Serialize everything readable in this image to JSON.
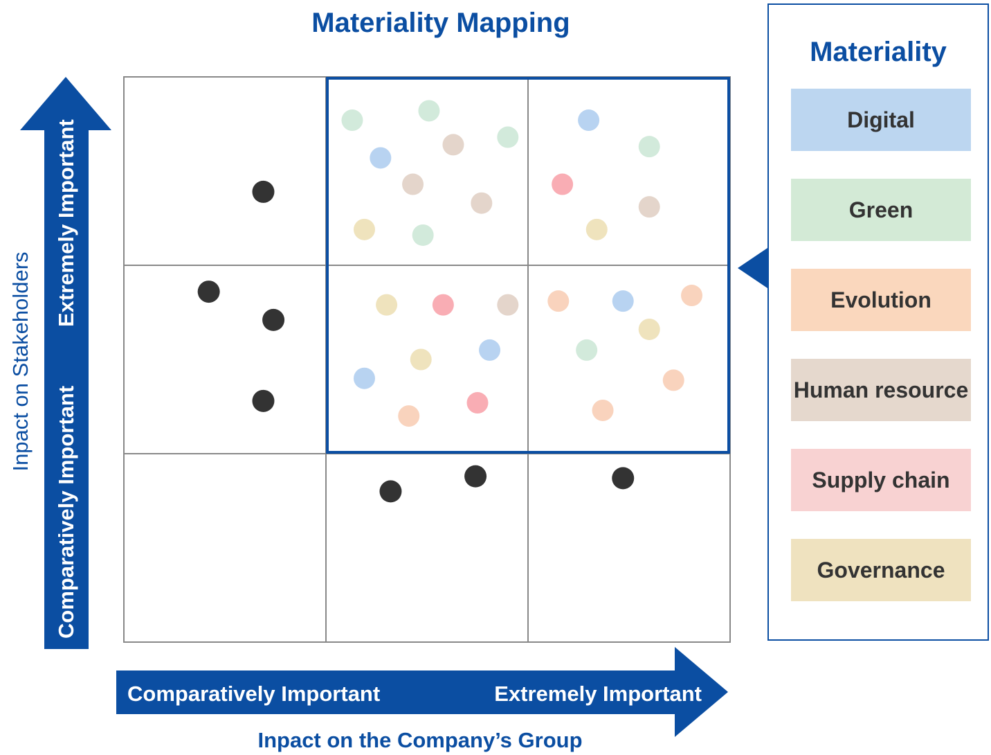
{
  "chart_data": {
    "type": "scatter",
    "title": "Materiality Mapping",
    "xlabel": "Inpact on the Company’s Group",
    "ylabel": "Inpact on Stakeholders",
    "x_axis_labels": {
      "low": "Comparatively Important",
      "high": "Extremely Important"
    },
    "y_axis_labels": {
      "low": "Comparatively Important",
      "high": "Extremely Important"
    },
    "xlim": [
      0,
      3
    ],
    "ylim": [
      0,
      3
    ],
    "grid": {
      "rows": 3,
      "cols": 3
    },
    "legend": {
      "title": "Materiality",
      "placement": "right",
      "entries": [
        {
          "key": "digital",
          "label": "Digital",
          "color": "#bcd6f0"
        },
        {
          "key": "green",
          "label": "Green",
          "color": "#d3ead6"
        },
        {
          "key": "evolution",
          "label": "Evolution",
          "color": "#fad7bd"
        },
        {
          "key": "human",
          "label": "Human resource",
          "color": "#e5d8cd"
        },
        {
          "key": "supply",
          "label": "Supply chain",
          "color": "#f8d2d2"
        },
        {
          "key": "governance",
          "label": "Governance",
          "color": "#efe2bf"
        }
      ]
    },
    "dot_colors": {
      "digital": "#b8d3f1",
      "green": "#d2eadb",
      "evolution": "#f9d3bd",
      "human": "#e4d5cb",
      "supply": "#f9adb4",
      "governance": "#efe3bd",
      "other": "#333333"
    },
    "points": [
      {
        "x": 1.13,
        "y": 2.77,
        "category": "green"
      },
      {
        "x": 1.51,
        "y": 2.82,
        "category": "green"
      },
      {
        "x": 1.9,
        "y": 2.68,
        "category": "green"
      },
      {
        "x": 1.27,
        "y": 2.57,
        "category": "digital"
      },
      {
        "x": 1.63,
        "y": 2.64,
        "category": "human"
      },
      {
        "x": 1.43,
        "y": 2.43,
        "category": "human"
      },
      {
        "x": 1.77,
        "y": 2.33,
        "category": "human"
      },
      {
        "x": 1.19,
        "y": 2.19,
        "category": "governance"
      },
      {
        "x": 1.48,
        "y": 2.16,
        "category": "green"
      },
      {
        "x": 2.3,
        "y": 2.77,
        "category": "digital"
      },
      {
        "x": 2.6,
        "y": 2.63,
        "category": "green"
      },
      {
        "x": 2.17,
        "y": 2.43,
        "category": "supply"
      },
      {
        "x": 2.6,
        "y": 2.31,
        "category": "human"
      },
      {
        "x": 2.34,
        "y": 2.19,
        "category": "governance"
      },
      {
        "x": 1.3,
        "y": 1.79,
        "category": "governance"
      },
      {
        "x": 1.58,
        "y": 1.79,
        "category": "supply"
      },
      {
        "x": 1.9,
        "y": 1.79,
        "category": "human"
      },
      {
        "x": 1.81,
        "y": 1.55,
        "category": "digital"
      },
      {
        "x": 1.47,
        "y": 1.5,
        "category": "governance"
      },
      {
        "x": 1.19,
        "y": 1.4,
        "category": "digital"
      },
      {
        "x": 1.75,
        "y": 1.27,
        "category": "supply"
      },
      {
        "x": 1.41,
        "y": 1.2,
        "category": "evolution"
      },
      {
        "x": 2.15,
        "y": 1.81,
        "category": "evolution"
      },
      {
        "x": 2.47,
        "y": 1.81,
        "category": "digital"
      },
      {
        "x": 2.81,
        "y": 1.84,
        "category": "evolution"
      },
      {
        "x": 2.6,
        "y": 1.66,
        "category": "governance"
      },
      {
        "x": 2.29,
        "y": 1.55,
        "category": "green"
      },
      {
        "x": 2.72,
        "y": 1.39,
        "category": "evolution"
      },
      {
        "x": 2.37,
        "y": 1.23,
        "category": "evolution"
      },
      {
        "x": 0.69,
        "y": 2.39,
        "category": "other"
      },
      {
        "x": 0.42,
        "y": 1.86,
        "category": "other"
      },
      {
        "x": 0.74,
        "y": 1.71,
        "category": "other"
      },
      {
        "x": 0.69,
        "y": 1.28,
        "category": "other"
      },
      {
        "x": 1.32,
        "y": 0.8,
        "category": "other"
      },
      {
        "x": 1.74,
        "y": 0.88,
        "category": "other"
      },
      {
        "x": 2.47,
        "y": 0.87,
        "category": "other"
      }
    ],
    "highlight_region": {
      "x": [
        1,
        3
      ],
      "y": [
        1,
        3
      ]
    }
  }
}
